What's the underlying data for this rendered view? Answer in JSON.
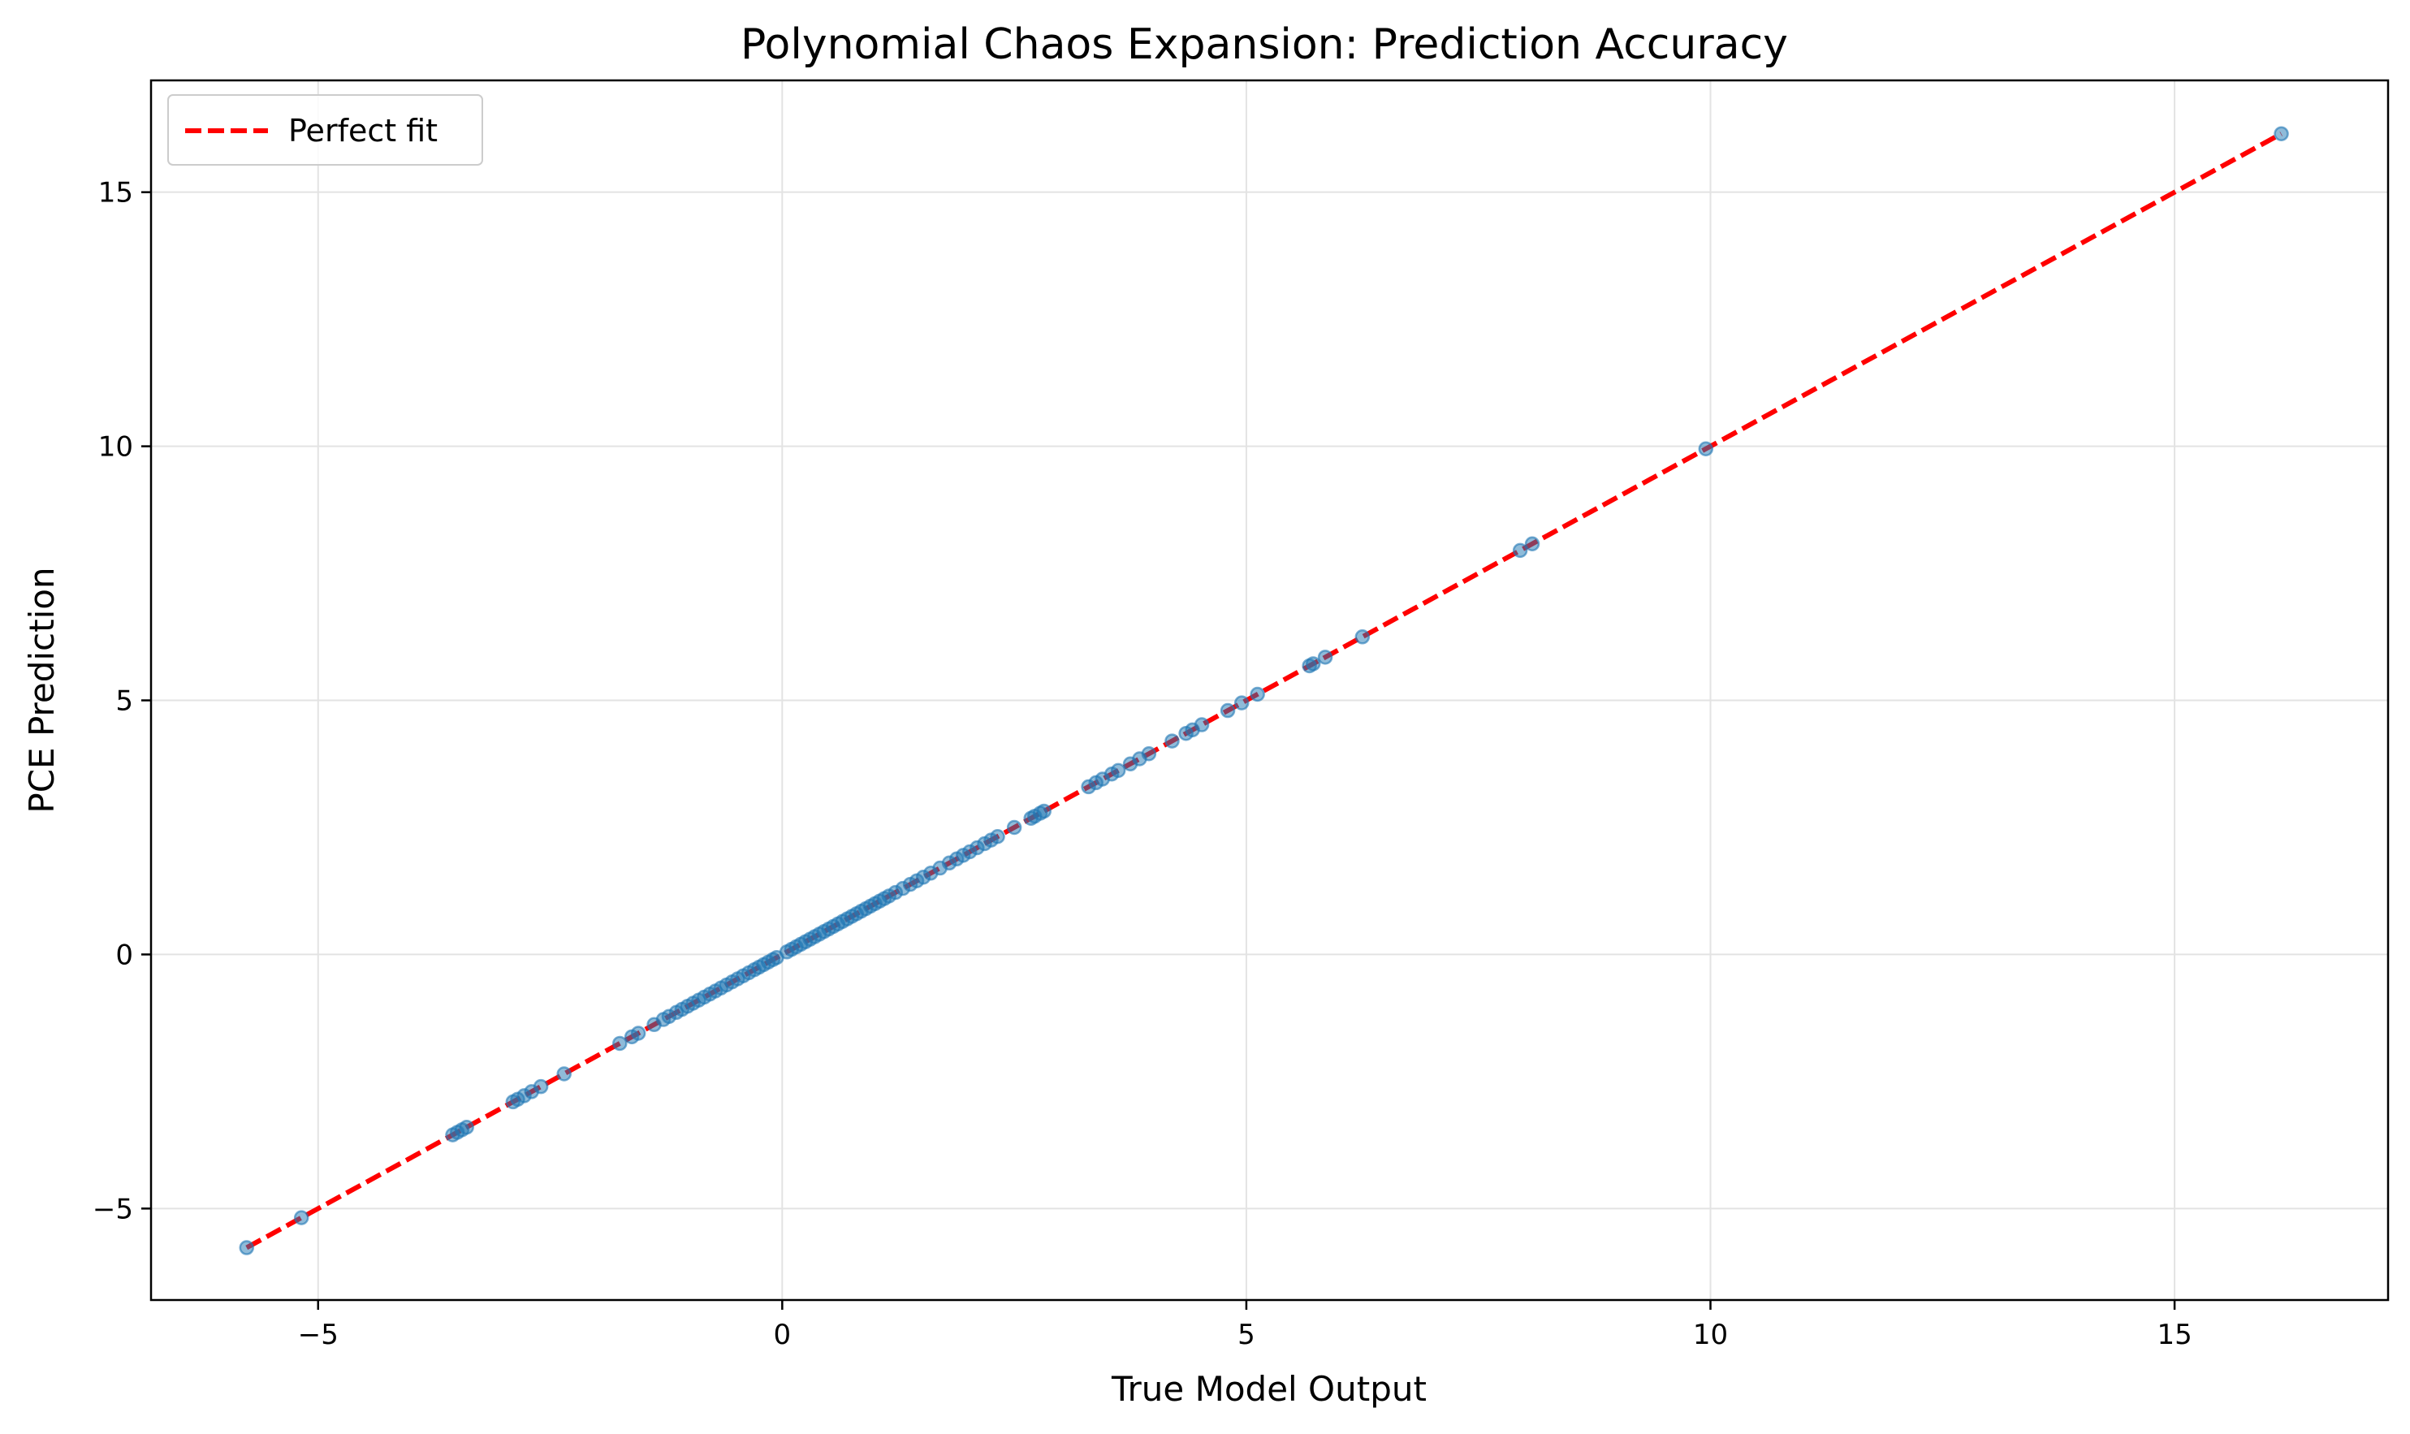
{
  "chart_data": {
    "type": "scatter",
    "title": "Polynomial Chaos Expansion: Prediction Accuracy",
    "xlabel": "True Model Output",
    "ylabel": "PCE Prediction",
    "xlim": [
      -6.8,
      17.3
    ],
    "ylim": [
      -6.8,
      17.2
    ],
    "xticks": [
      -5,
      0,
      5,
      10,
      15
    ],
    "yticks": [
      -5,
      0,
      5,
      10,
      15
    ],
    "xtick_labels": [
      "−5",
      "0",
      "5",
      "10",
      "15"
    ],
    "ytick_labels": [
      "−5",
      "0",
      "5",
      "10",
      "15"
    ],
    "grid": true,
    "legend": {
      "position": "top-left",
      "entries": [
        "Perfect fit"
      ]
    },
    "colors": {
      "points": "#1f77b4",
      "fit_line": "#ff0000",
      "grid": "#e3e3e3"
    },
    "perfect_fit": {
      "name": "Perfect fit",
      "x": [
        -5.77,
        16.15
      ],
      "y": [
        -5.77,
        16.15
      ]
    },
    "points": {
      "x": [
        -5.77,
        -5.18,
        -3.55,
        -3.5,
        -3.45,
        -3.4,
        -2.9,
        -2.85,
        -2.78,
        -2.7,
        -2.6,
        -2.35,
        -1.75,
        -1.62,
        -1.55,
        -1.38,
        -1.28,
        -1.22,
        -1.14,
        -1.08,
        -1.02,
        -0.96,
        -0.9,
        -0.84,
        -0.78,
        -0.72,
        -0.66,
        -0.6,
        -0.54,
        -0.48,
        -0.42,
        -0.36,
        -0.3,
        -0.25,
        -0.2,
        -0.15,
        -0.1,
        -0.06,
        0.05,
        0.1,
        0.15,
        0.2,
        0.25,
        0.3,
        0.35,
        0.4,
        0.45,
        0.5,
        0.55,
        0.6,
        0.65,
        0.7,
        0.75,
        0.8,
        0.85,
        0.9,
        0.95,
        1.0,
        1.05,
        1.1,
        1.15,
        1.22,
        1.3,
        1.38,
        1.45,
        1.52,
        1.6,
        1.7,
        1.8,
        1.88,
        1.95,
        2.02,
        2.1,
        2.18,
        2.25,
        2.32,
        2.5,
        2.68,
        2.72,
        2.78,
        2.82,
        3.3,
        3.38,
        3.45,
        3.55,
        3.62,
        3.75,
        3.85,
        3.95,
        4.2,
        4.35,
        4.42,
        4.52,
        4.8,
        4.95,
        5.12,
        5.68,
        5.72,
        5.85,
        6.25,
        7.95,
        8.08,
        9.95,
        16.15
      ],
      "y": [
        -5.77,
        -5.18,
        -3.55,
        -3.5,
        -3.45,
        -3.4,
        -2.9,
        -2.85,
        -2.78,
        -2.7,
        -2.6,
        -2.35,
        -1.75,
        -1.62,
        -1.55,
        -1.38,
        -1.28,
        -1.22,
        -1.14,
        -1.08,
        -1.02,
        -0.96,
        -0.9,
        -0.84,
        -0.78,
        -0.72,
        -0.66,
        -0.6,
        -0.54,
        -0.48,
        -0.42,
        -0.36,
        -0.3,
        -0.25,
        -0.2,
        -0.15,
        -0.1,
        -0.06,
        0.05,
        0.1,
        0.15,
        0.2,
        0.25,
        0.3,
        0.35,
        0.4,
        0.45,
        0.5,
        0.55,
        0.6,
        0.65,
        0.7,
        0.75,
        0.8,
        0.85,
        0.9,
        0.95,
        1.0,
        1.05,
        1.1,
        1.15,
        1.22,
        1.3,
        1.38,
        1.45,
        1.52,
        1.6,
        1.7,
        1.8,
        1.88,
        1.95,
        2.02,
        2.1,
        2.18,
        2.25,
        2.32,
        2.5,
        2.68,
        2.72,
        2.78,
        2.82,
        3.3,
        3.38,
        3.45,
        3.55,
        3.62,
        3.75,
        3.85,
        3.95,
        4.2,
        4.35,
        4.42,
        4.52,
        4.8,
        4.95,
        5.12,
        5.68,
        5.72,
        5.85,
        6.25,
        7.95,
        8.08,
        9.95,
        16.15
      ]
    }
  }
}
